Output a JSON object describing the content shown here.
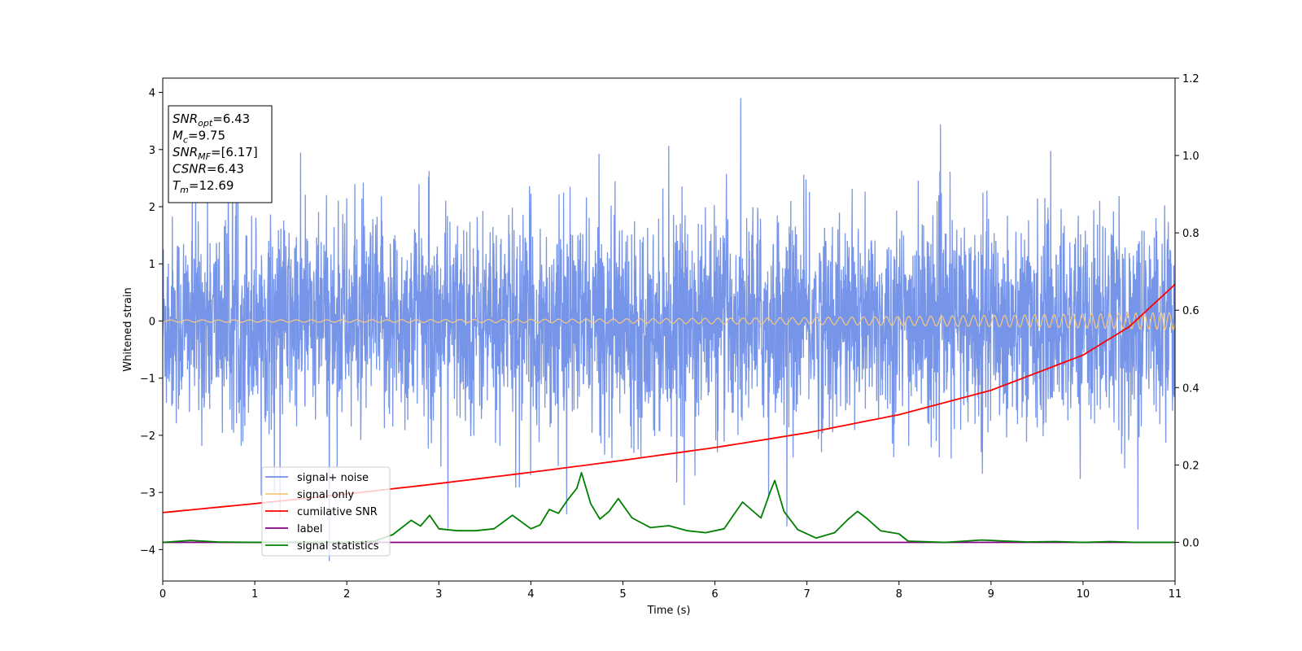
{
  "chart_data": {
    "type": "line",
    "xlabel": "Time (s)",
    "ylabel": "Whitened strain",
    "xlim": [
      0,
      11
    ],
    "ylim_left": [
      -4.55,
      4.25
    ],
    "ylim_right": [
      -0.1,
      1.2
    ],
    "x_ticks": [
      0,
      1,
      2,
      3,
      4,
      5,
      6,
      7,
      8,
      9,
      10,
      11
    ],
    "y_ticks_left": [
      -4,
      -3,
      -2,
      -1,
      0,
      1,
      2,
      3,
      4
    ],
    "y_ticks_right": [
      0.0,
      0.2,
      0.4,
      0.6,
      0.8,
      1.0,
      1.2
    ],
    "y_tick_labels_left": [
      "−4",
      "−3",
      "−2",
      "−1",
      "0",
      "1",
      "2",
      "3",
      "4"
    ],
    "y_tick_labels_right": [
      "0.0",
      "0.2",
      "0.4",
      "0.6",
      "0.8",
      "1.0",
      "1.2"
    ],
    "legend": {
      "position": "lower-left",
      "entries": [
        {
          "label": "signal+ noise",
          "color": "#6f8fe8"
        },
        {
          "label": "signal only",
          "color": "#f5c77e"
        },
        {
          "label": "cumilative SNR",
          "color": "#ff0000"
        },
        {
          "label": "label",
          "color": "#800080"
        },
        {
          "label": "signal statistics",
          "color": "#008000"
        }
      ]
    },
    "stats_box": {
      "lines": [
        {
          "sym": "SNR",
          "sub": "opt",
          "value": "=6.43"
        },
        {
          "sym": "M",
          "sub": "c",
          "value": "=9.75"
        },
        {
          "sym": "SNR",
          "sub": "MF",
          "value": "=[6.17]"
        },
        {
          "sym": "CSNR",
          "sub": "",
          "value": "=6.43"
        },
        {
          "sym": "T",
          "sub": "m",
          "value": "=12.69"
        }
      ]
    },
    "series": [
      {
        "name": "signal+ noise",
        "axis": "left",
        "color": "#6f8fe8",
        "description_type": "noise",
        "typical_range": [
          -2.1,
          2.1
        ],
        "spike_max": [
          -4.2,
          3.9
        ]
      },
      {
        "name": "signal only",
        "axis": "left",
        "color": "#f5c77e",
        "description_type": "chirp",
        "amplitude_start": 0.02,
        "amplitude_end": 0.15
      },
      {
        "name": "cumilative SNR",
        "axis": "right",
        "color": "#ff0000",
        "x": [
          0,
          1,
          2,
          3,
          4,
          5,
          6,
          7,
          8,
          9,
          10,
          10.5,
          11
        ],
        "y": [
          0.077,
          0.1,
          0.125,
          0.152,
          0.181,
          0.212,
          0.245,
          0.283,
          0.33,
          0.393,
          0.484,
          0.557,
          0.667
        ]
      },
      {
        "name": "label",
        "axis": "right",
        "color": "#800080",
        "x": [
          0,
          11
        ],
        "y": [
          0.0,
          0.0
        ]
      },
      {
        "name": "signal statistics",
        "axis": "right",
        "color": "#008000",
        "x": [
          0,
          0.3,
          0.6,
          1.0,
          1.5,
          2.0,
          2.3,
          2.5,
          2.7,
          2.8,
          2.9,
          3.0,
          3.2,
          3.4,
          3.6,
          3.8,
          4.0,
          4.1,
          4.2,
          4.3,
          4.4,
          4.5,
          4.55,
          4.65,
          4.75,
          4.85,
          4.95,
          5.1,
          5.3,
          5.5,
          5.7,
          5.9,
          6.1,
          6.2,
          6.3,
          6.5,
          6.6,
          6.65,
          6.75,
          6.9,
          7.1,
          7.3,
          7.45,
          7.55,
          7.65,
          7.8,
          8.0,
          8.1,
          8.5,
          8.9,
          9.1,
          9.4,
          9.7,
          10.0,
          10.3,
          10.6,
          11.0
        ],
        "y": [
          0.0,
          0.005,
          0.001,
          0.0,
          0.0,
          0.0,
          0.003,
          0.02,
          0.057,
          0.042,
          0.07,
          0.035,
          0.03,
          0.03,
          0.035,
          0.07,
          0.035,
          0.045,
          0.085,
          0.075,
          0.11,
          0.14,
          0.18,
          0.1,
          0.06,
          0.08,
          0.113,
          0.063,
          0.038,
          0.043,
          0.03,
          0.025,
          0.035,
          0.07,
          0.104,
          0.063,
          0.13,
          0.16,
          0.08,
          0.033,
          0.011,
          0.025,
          0.06,
          0.08,
          0.062,
          0.03,
          0.022,
          0.003,
          0.0,
          0.006,
          0.004,
          0.001,
          0.002,
          0.0,
          0.002,
          0.0,
          0.0
        ]
      }
    ]
  }
}
